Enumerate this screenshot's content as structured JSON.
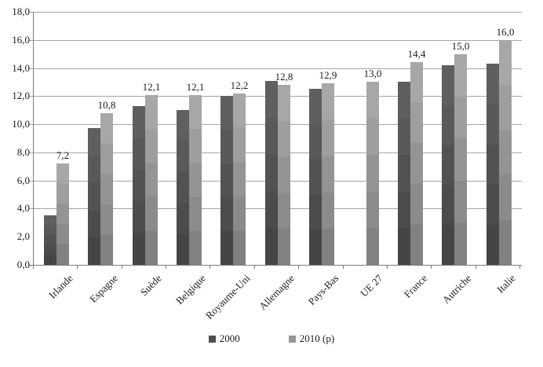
{
  "chart_data": {
    "type": "bar",
    "title": "",
    "xlabel": "",
    "ylabel": "",
    "decimal_separator": ",",
    "categories": [
      "Irlande",
      "Espagne",
      "Suède",
      "Belgique",
      "Royaume-Uni",
      "Allemagne",
      "Pays-Bas",
      "UE 27",
      "France",
      "Autriche",
      "Italie"
    ],
    "series": [
      {
        "name": "2000",
        "values": [
          3.5,
          9.7,
          11.3,
          11.0,
          12.0,
          13.1,
          12.5,
          null,
          13.0,
          14.2,
          14.3
        ],
        "labels": [
          null,
          null,
          null,
          null,
          null,
          null,
          null,
          null,
          null,
          null,
          null
        ],
        "color_top": "#5f5f5f",
        "color_bottom": "#454545",
        "swatch_color": "#4f4f4f"
      },
      {
        "name": "2010 (p)",
        "values": [
          7.2,
          10.8,
          12.1,
          12.1,
          12.2,
          12.8,
          12.9,
          13.0,
          14.4,
          15.0,
          16.0
        ],
        "labels": [
          "7,2",
          "10,8",
          "12,1",
          "12,1",
          "12,2",
          "12,8",
          "12,9",
          "13,0",
          "14,4",
          "15,0",
          "16,0"
        ],
        "color_top": "#a7a7a7",
        "color_bottom": "#818181",
        "swatch_color": "#979797"
      }
    ],
    "ylim": [
      0,
      18
    ],
    "ytick_step": 2,
    "ytick_labels": [
      "0,0",
      "2,0",
      "4,0",
      "6,0",
      "8,0",
      "10,0",
      "12,0",
      "14,0",
      "16,0",
      "18,0"
    ],
    "gridline_values": [
      4,
      6,
      8,
      10,
      12,
      14,
      16,
      18
    ],
    "grid": true,
    "legend_position": "bottom",
    "legend": [
      {
        "label": "2000"
      },
      {
        "label": "2010 (p)"
      }
    ]
  },
  "colors": {
    "gridline": "#a6a6a6",
    "axis": "#7d7d7d",
    "text": "#1c1c1c",
    "background": "#ffffff"
  }
}
